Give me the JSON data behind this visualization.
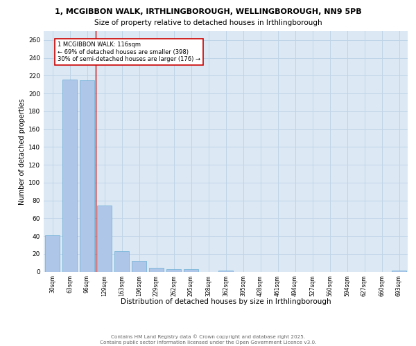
{
  "title_line1": "1, MCGIBBON WALK, IRTHLINGBOROUGH, WELLINGBOROUGH, NN9 5PB",
  "title_line2": "Size of property relative to detached houses in Irthlingborough",
  "xlabel": "Distribution of detached houses by size in Irthlingborough",
  "ylabel": "Number of detached properties",
  "categories": [
    "30sqm",
    "63sqm",
    "96sqm",
    "129sqm",
    "163sqm",
    "196sqm",
    "229sqm",
    "262sqm",
    "295sqm",
    "328sqm",
    "362sqm",
    "395sqm",
    "428sqm",
    "461sqm",
    "494sqm",
    "527sqm",
    "560sqm",
    "594sqm",
    "627sqm",
    "660sqm",
    "693sqm"
  ],
  "values": [
    41,
    216,
    215,
    74,
    23,
    12,
    4,
    3,
    3,
    0,
    1,
    0,
    0,
    0,
    0,
    0,
    0,
    0,
    0,
    0,
    1
  ],
  "bar_color": "#aec6e8",
  "bar_edge_color": "#6aafd6",
  "grid_color": "#c0d4e8",
  "background_color": "#dce8f4",
  "vline_x_index": 2.5,
  "vline_color": "#cc0000",
  "annotation_text": "1 MCGIBBON WALK: 116sqm\n← 69% of detached houses are smaller (398)\n30% of semi-detached houses are larger (176) →",
  "annotation_box_color": "#ffffff",
  "annotation_box_edge_color": "#cc0000",
  "footer_text": "Contains HM Land Registry data © Crown copyright and database right 2025.\nContains public sector information licensed under the Open Government Licence v3.0.",
  "ylim": [
    0,
    270
  ],
  "yticks": [
    0,
    20,
    40,
    60,
    80,
    100,
    120,
    140,
    160,
    180,
    200,
    220,
    240,
    260
  ]
}
